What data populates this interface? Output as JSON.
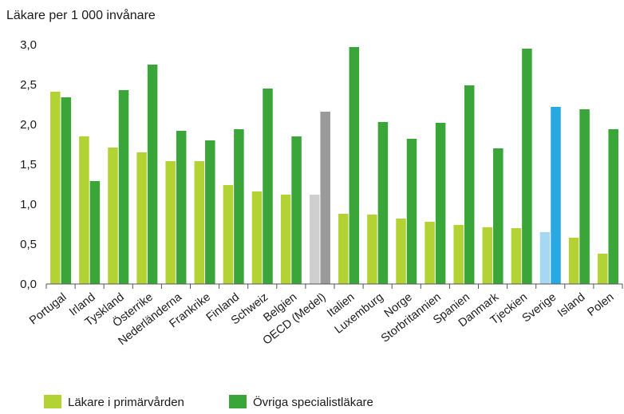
{
  "chart_data": {
    "type": "bar",
    "ylabel": "Läkare per 1 000 invånare",
    "ylim": [
      0,
      3.0
    ],
    "yticks": [
      "0,0",
      "0,5",
      "1,0",
      "1,5",
      "2,0",
      "2,5",
      "3,0"
    ],
    "grid": false,
    "legend_position": "bottom-left",
    "categories": [
      "Portugal",
      "Irland",
      "Tyskland",
      "Österrike",
      "Nederländerna",
      "Frankrike",
      "Finland",
      "Schweiz",
      "Belgien",
      "OECD (Medel)",
      "Italien",
      "Luxemburg",
      "Norge",
      "Storbritannien",
      "Spanien",
      "Danmark",
      "Tjeckien",
      "Sverige",
      "Island",
      "Polen"
    ],
    "series": [
      {
        "name": "Läkare i primärvården",
        "color": "#b3d334",
        "values": [
          2.41,
          1.85,
          1.71,
          1.65,
          1.54,
          1.54,
          1.24,
          1.16,
          1.12,
          1.12,
          0.88,
          0.87,
          0.82,
          0.78,
          0.74,
          0.71,
          0.7,
          0.65,
          0.58,
          0.38
        ]
      },
      {
        "name": "Övriga specialistläkare",
        "color": "#3aa538",
        "values": [
          2.34,
          1.29,
          2.43,
          2.75,
          1.92,
          1.8,
          1.94,
          2.45,
          1.85,
          2.16,
          2.97,
          2.03,
          1.82,
          2.02,
          2.49,
          1.7,
          2.95,
          2.22,
          2.19,
          1.94
        ]
      }
    ],
    "highlight_colors": {
      "OECD (Medel)": {
        "primary": "#cfcfcf",
        "specialist": "#9a9a9a"
      },
      "Sverige": {
        "primary": "#a6d8f2",
        "specialist": "#29a9e1"
      }
    }
  }
}
